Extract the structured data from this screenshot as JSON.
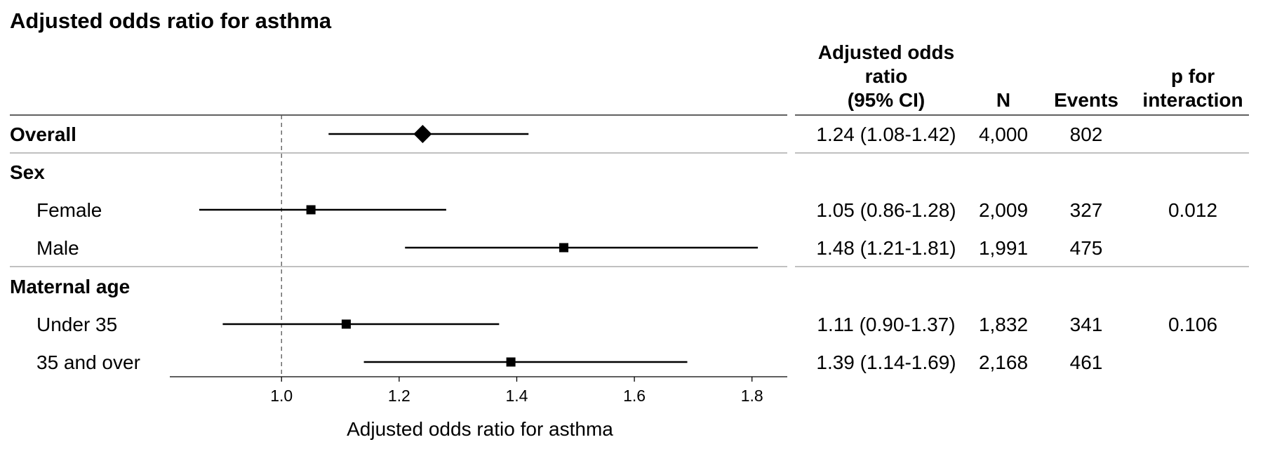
{
  "chart_data": {
    "type": "forest",
    "title": "Adjusted odds ratio for asthma",
    "xlabel": "Adjusted odds ratio for asthma",
    "reference_line": 1.0,
    "xlim": [
      0.81,
      1.86
    ],
    "x_ticks": [
      "1.0",
      "1.2",
      "1.4",
      "1.6",
      "1.8"
    ],
    "x_tick_values": [
      1.0,
      1.2,
      1.4,
      1.6,
      1.8
    ],
    "columns": {
      "or_ci_lines": [
        "Adjusted odds",
        "ratio",
        "(95% CI)"
      ],
      "n": "N",
      "events": "Events",
      "p_lines": [
        "p for",
        "interaction"
      ]
    },
    "rows": [
      {
        "label": "Overall",
        "kind": "overall",
        "or": 1.24,
        "lo": 1.08,
        "hi": 1.42,
        "or_text": "1.24 (1.08-1.42)",
        "n": "4,000",
        "events": "802",
        "p": ""
      },
      {
        "label": "Sex",
        "kind": "group"
      },
      {
        "label": "Female",
        "kind": "sub",
        "or": 1.05,
        "lo": 0.86,
        "hi": 1.28,
        "or_text": "1.05 (0.86-1.28)",
        "n": "2,009",
        "events": "327",
        "p": "0.012"
      },
      {
        "label": "Male",
        "kind": "sub",
        "or": 1.48,
        "lo": 1.21,
        "hi": 1.81,
        "or_text": "1.48 (1.21-1.81)",
        "n": "1,991",
        "events": "475",
        "p": ""
      },
      {
        "label": "Maternal age",
        "kind": "group"
      },
      {
        "label": "Under 35",
        "kind": "sub",
        "or": 1.11,
        "lo": 0.9,
        "hi": 1.37,
        "or_text": "1.11 (0.90-1.37)",
        "n": "1,832",
        "events": "341",
        "p": "0.106"
      },
      {
        "label": "35 and over",
        "kind": "sub",
        "or": 1.39,
        "lo": 1.14,
        "hi": 1.69,
        "or_text": "1.39 (1.14-1.69)",
        "n": "2,168",
        "events": "461",
        "p": ""
      }
    ]
  }
}
